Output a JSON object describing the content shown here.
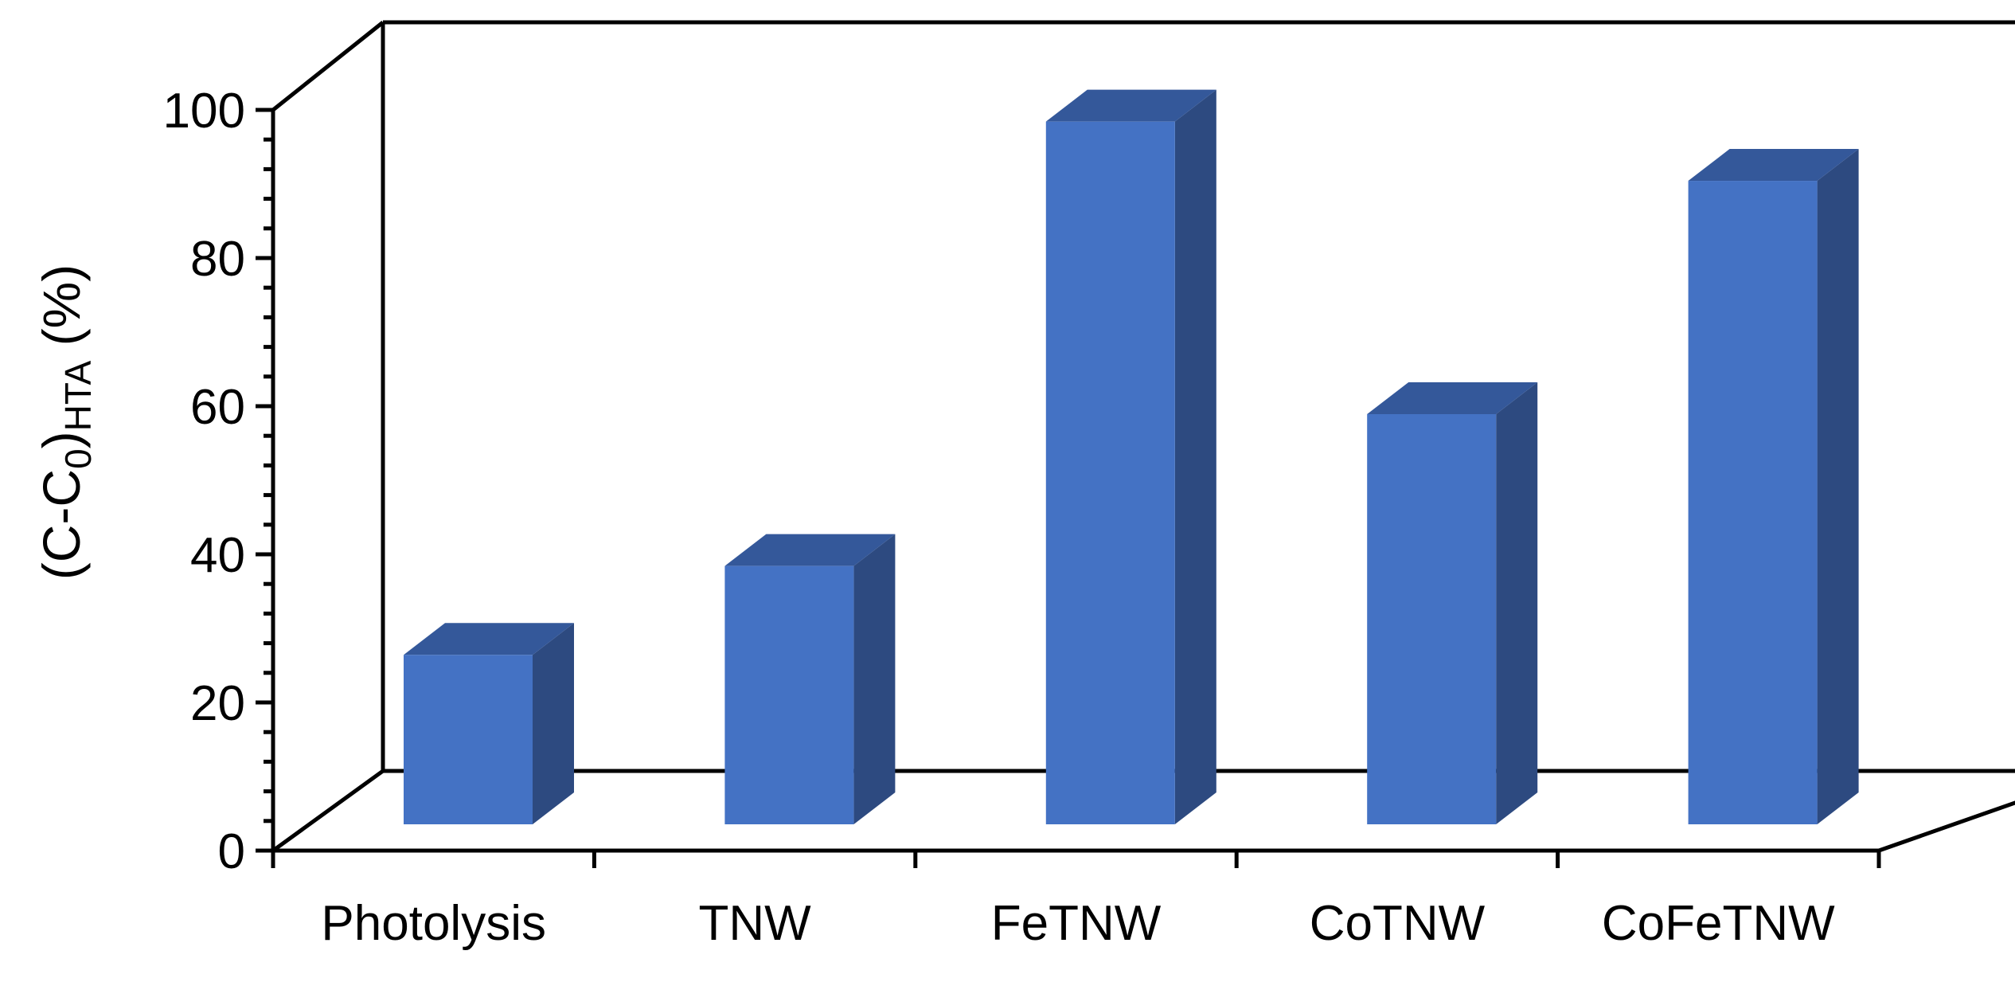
{
  "chart_data": {
    "type": "bar",
    "categories": [
      "Photolysis",
      "TNW",
      "FeTNW",
      "CoTNW",
      "CoFeTNW"
    ],
    "series": [
      {
        "values": [
          27.5,
          39.5,
          99.5,
          60,
          91.5
        ]
      }
    ],
    "ylabel": {
      "prefix": "(C-C",
      "sub0": "0",
      "close": ")",
      "sub_hta": "HTA",
      "suffix": " (%)"
    },
    "yticks": [
      0,
      20,
      40,
      60,
      80,
      100
    ],
    "ylim": [
      0,
      100
    ],
    "style": "3d-column",
    "colors": {
      "front": "#4472C4",
      "side": "#2D4A80",
      "top": "#34589A"
    },
    "grid": false,
    "legend": "none"
  }
}
